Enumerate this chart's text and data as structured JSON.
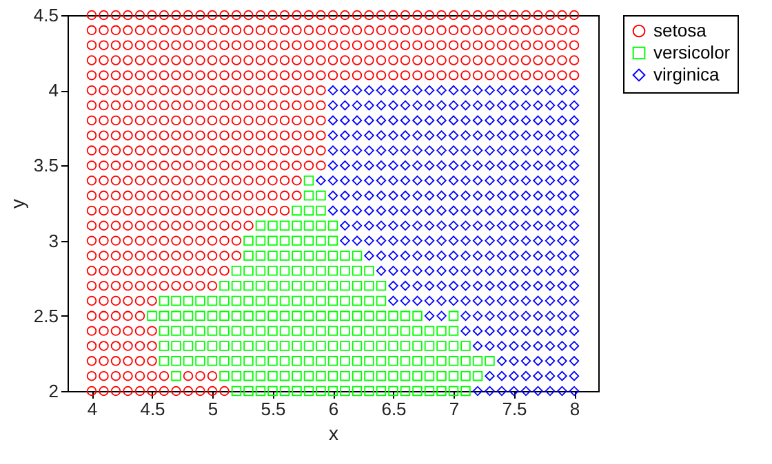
{
  "chart_data": {
    "type": "scatter",
    "xlabel": "x",
    "ylabel": "y",
    "xlim": [
      3.8,
      8.2
    ],
    "ylim": [
      2,
      4.5
    ],
    "xticks": [
      4,
      4.5,
      5,
      5.5,
      6,
      6.5,
      7,
      7.5,
      8
    ],
    "yticks": [
      2,
      2.5,
      3,
      3.5,
      4,
      4.5
    ],
    "grid": false,
    "legend": "right",
    "series": [
      {
        "name": "setosa",
        "color": "#ff0000",
        "marker": "circle",
        "x": [
          4,
          4.1,
          4.2,
          4.3,
          4.4,
          4.5,
          4.6,
          4.7,
          4.8,
          4.9,
          5,
          5.1,
          5.2,
          5.3,
          5.4,
          5.5,
          5.6,
          5.7,
          5.8,
          5.9,
          6,
          6.1,
          6.2,
          6.3,
          6.4,
          6.5,
          6.6,
          6.7,
          6.8,
          6.9,
          7,
          7.1,
          7.2,
          7.3,
          7.4,
          7.5,
          7.6,
          7.7,
          7.8,
          7.9,
          8,
          4,
          4.1,
          4.2,
          4.3,
          4.4,
          4.5,
          4.6,
          4.7,
          4.8,
          4.9,
          5,
          5.1,
          5.2,
          5.3,
          5.4,
          5.5,
          5.6,
          5.7,
          5.8,
          5.9,
          6,
          6.1,
          6.2,
          6.3,
          6.4,
          6.5,
          6.6,
          6.7,
          6.8,
          6.9,
          7,
          7.1,
          7.2,
          7.3,
          7.4,
          7.5,
          7.6,
          7.7,
          7.8,
          7.9,
          8,
          4,
          4.1,
          4.2,
          4.3,
          4.4,
          4.5,
          4.6,
          4.7,
          4.8,
          4.9,
          5,
          5.1,
          5.2,
          5.3,
          5.4,
          5.5,
          5.6,
          5.7,
          5.8,
          5.9,
          6,
          6.1,
          6.2,
          6.3,
          6.4,
          6.5,
          6.6,
          6.7,
          6.8,
          6.9,
          7,
          7.1,
          7.2,
          7.3,
          7.4,
          7.5,
          7.6,
          7.7,
          7.8,
          7.9,
          8,
          4,
          4.1,
          4.2,
          4.3,
          4.4,
          4.5,
          4.6,
          4.7,
          4.8,
          4.9,
          5,
          5.1,
          5.2,
          5.3,
          5.4,
          5.5,
          5.6,
          5.7,
          5.8,
          5.9,
          6,
          6.1,
          6.2,
          6.3,
          6.4,
          6.5,
          6.6,
          6.7,
          6.8,
          6.9,
          7,
          7.1,
          7.2,
          7.3,
          7.4,
          7.5,
          7.6,
          7.7,
          7.8,
          7.9,
          8,
          4,
          4.1,
          4.2,
          4.3,
          4.4,
          4.5,
          4.6,
          4.7,
          4.8,
          4.9,
          5,
          5.1,
          5.2,
          5.3,
          5.4,
          5.5,
          5.6,
          5.7,
          5.8,
          5.9,
          6,
          6.1,
          6.2,
          6.3,
          6.4,
          6.5,
          6.6,
          6.7,
          6.8,
          6.9,
          7,
          7.1,
          7.2,
          7.3,
          7.4,
          7.5,
          7.6,
          7.7,
          7.8,
          7.9,
          8,
          4,
          4.1,
          4.2,
          4.3,
          4.4,
          4.5,
          4.6,
          4.7,
          4.8,
          4.9,
          5,
          5.1,
          5.2,
          5.3,
          5.4,
          5.5,
          5.6,
          5.7,
          5.8,
          5.9,
          4,
          4.1,
          4.2,
          4.3,
          4.4,
          4.5,
          4.6,
          4.7,
          4.8,
          4.9,
          5,
          5.1,
          5.2,
          5.3,
          5.4,
          5.5,
          5.6,
          5.7,
          5.8,
          5.9,
          4,
          4.1,
          4.2,
          4.3,
          4.4,
          4.5,
          4.6,
          4.7,
          4.8,
          4.9,
          5,
          5.1,
          5.2,
          5.3,
          5.4,
          5.5,
          5.6,
          5.7,
          5.8,
          5.9,
          4,
          4.1,
          4.2,
          4.3,
          4.4,
          4.5,
          4.6,
          4.7,
          4.8,
          4.9,
          5,
          5.1,
          5.2,
          5.3,
          5.4,
          5.5,
          5.6,
          5.7,
          5.8,
          5.9,
          4,
          4.1,
          4.2,
          4.3,
          4.4,
          4.5,
          4.6,
          4.7,
          4.8,
          4.9,
          5,
          5.1,
          5.2,
          5.3,
          5.4,
          5.5,
          5.6,
          5.7,
          5.8,
          5.9,
          4,
          4.1,
          4.2,
          4.3,
          4.4,
          4.5,
          4.6,
          4.7,
          4.8,
          4.9,
          5,
          5.1,
          5.2,
          5.3,
          5.4,
          5.5,
          5.6,
          5.7,
          5.8,
          5.9,
          4,
          4.1,
          4.2,
          4.3,
          4.4,
          4.5,
          4.6,
          4.7,
          4.8,
          4.9,
          5,
          5.1,
          5.2,
          5.3,
          5.4,
          5.5,
          5.6,
          5.7,
          4,
          4.1,
          4.2,
          4.3,
          4.4,
          4.5,
          4.6,
          4.7,
          4.8,
          4.9,
          5,
          5.1,
          5.2,
          5.3,
          5.4,
          5.5,
          5.6,
          5.7,
          4,
          4.1,
          4.2,
          4.3,
          4.4,
          4.5,
          4.6,
          4.7,
          4.8,
          4.9,
          5,
          5.1,
          5.2,
          5.3,
          5.4,
          5.5,
          5.6,
          4,
          4.1,
          4.2,
          4.3,
          4.4,
          4.5,
          4.6,
          4.7,
          4.8,
          4.9,
          5,
          5.1,
          5.2,
          5.3,
          4,
          4.1,
          4.2,
          4.3,
          4.4,
          4.5,
          4.6,
          4.7,
          4.8,
          4.9,
          5,
          5.1,
          5.2,
          4,
          4.1,
          4.2,
          4.3,
          4.4,
          4.5,
          4.6,
          4.7,
          4.8,
          4.9,
          5,
          5.1,
          5.2,
          4,
          4.1,
          4.2,
          4.3,
          4.4,
          4.5,
          4.6,
          4.7,
          4.8,
          4.9,
          5,
          5.1,
          4,
          4.1,
          4.2,
          4.3,
          4.4,
          4.5,
          4.6,
          4.7,
          4.8,
          4.9,
          5,
          4,
          4.1,
          4.2,
          4.3,
          4.4,
          4.5,
          4,
          4.1,
          4.2,
          4.3,
          4.4,
          4,
          4.1,
          4.2,
          4.3,
          4.4,
          4.5,
          4,
          4.1,
          4.2,
          4.3,
          4.4,
          4.5,
          4,
          4.1,
          4.2,
          4.3,
          4.4,
          4.5,
          4,
          4.1,
          4.2,
          4.3,
          4.4,
          4.5,
          4.6,
          4.8,
          4.9,
          5,
          4,
          4.1,
          4.2,
          4.3,
          4.4,
          4.5,
          4.6,
          4.7,
          4.8,
          4.9,
          5,
          5.1
        ],
        "values": [
          4.5,
          4.5,
          4.5,
          4.5,
          4.5,
          4.5,
          4.5,
          4.5,
          4.5,
          4.5,
          4.5,
          4.5,
          4.5,
          4.5,
          4.5,
          4.5,
          4.5,
          4.5,
          4.5,
          4.5,
          4.5,
          4.5,
          4.5,
          4.5,
          4.5,
          4.5,
          4.5,
          4.5,
          4.5,
          4.5,
          4.5,
          4.5,
          4.5,
          4.5,
          4.5,
          4.5,
          4.5,
          4.5,
          4.5,
          4.5,
          4.5,
          4.4,
          4.4,
          4.4,
          4.4,
          4.4,
          4.4,
          4.4,
          4.4,
          4.4,
          4.4,
          4.4,
          4.4,
          4.4,
          4.4,
          4.4,
          4.4,
          4.4,
          4.4,
          4.4,
          4.4,
          4.4,
          4.4,
          4.4,
          4.4,
          4.4,
          4.4,
          4.4,
          4.4,
          4.4,
          4.4,
          4.4,
          4.4,
          4.4,
          4.4,
          4.4,
          4.4,
          4.4,
          4.4,
          4.4,
          4.4,
          4.4,
          4.3,
          4.3,
          4.3,
          4.3,
          4.3,
          4.3,
          4.3,
          4.3,
          4.3,
          4.3,
          4.3,
          4.3,
          4.3,
          4.3,
          4.3,
          4.3,
          4.3,
          4.3,
          4.3,
          4.3,
          4.3,
          4.3,
          4.3,
          4.3,
          4.3,
          4.3,
          4.3,
          4.3,
          4.3,
          4.3,
          4.3,
          4.3,
          4.3,
          4.3,
          4.3,
          4.3,
          4.3,
          4.3,
          4.3,
          4.3,
          4.3,
          4.2,
          4.2,
          4.2,
          4.2,
          4.2,
          4.2,
          4.2,
          4.2,
          4.2,
          4.2,
          4.2,
          4.2,
          4.2,
          4.2,
          4.2,
          4.2,
          4.2,
          4.2,
          4.2,
          4.2,
          4.2,
          4.2,
          4.2,
          4.2,
          4.2,
          4.2,
          4.2,
          4.2,
          4.2,
          4.2,
          4.2,
          4.2,
          4.2,
          4.2,
          4.2,
          4.2,
          4.2,
          4.2,
          4.2,
          4.2,
          4.2,
          4.1,
          4.1,
          4.1,
          4.1,
          4.1,
          4.1,
          4.1,
          4.1,
          4.1,
          4.1,
          4.1,
          4.1,
          4.1,
          4.1,
          4.1,
          4.1,
          4.1,
          4.1,
          4.1,
          4.1,
          4.1,
          4.1,
          4.1,
          4.1,
          4.1,
          4.1,
          4.1,
          4.1,
          4.1,
          4.1,
          4.1,
          4.1,
          4.1,
          4.1,
          4.1,
          4.1,
          4.1,
          4.1,
          4.1,
          4.1,
          4.1,
          4,
          4,
          4,
          4,
          4,
          4,
          4,
          4,
          4,
          4,
          4,
          4,
          4,
          4,
          4,
          4,
          4,
          4,
          4,
          4,
          3.9,
          3.9,
          3.9,
          3.9,
          3.9,
          3.9,
          3.9,
          3.9,
          3.9,
          3.9,
          3.9,
          3.9,
          3.9,
          3.9,
          3.9,
          3.9,
          3.9,
          3.9,
          3.9,
          3.9,
          3.8,
          3.8,
          3.8,
          3.8,
          3.8,
          3.8,
          3.8,
          3.8,
          3.8,
          3.8,
          3.8,
          3.8,
          3.8,
          3.8,
          3.8,
          3.8,
          3.8,
          3.8,
          3.8,
          3.8,
          3.7,
          3.7,
          3.7,
          3.7,
          3.7,
          3.7,
          3.7,
          3.7,
          3.7,
          3.7,
          3.7,
          3.7,
          3.7,
          3.7,
          3.7,
          3.7,
          3.7,
          3.7,
          3.7,
          3.7,
          3.6,
          3.6,
          3.6,
          3.6,
          3.6,
          3.6,
          3.6,
          3.6,
          3.6,
          3.6,
          3.6,
          3.6,
          3.6,
          3.6,
          3.6,
          3.6,
          3.6,
          3.6,
          3.6,
          3.6,
          3.5,
          3.5,
          3.5,
          3.5,
          3.5,
          3.5,
          3.5,
          3.5,
          3.5,
          3.5,
          3.5,
          3.5,
          3.5,
          3.5,
          3.5,
          3.5,
          3.5,
          3.5,
          3.5,
          3.5,
          3.4,
          3.4,
          3.4,
          3.4,
          3.4,
          3.4,
          3.4,
          3.4,
          3.4,
          3.4,
          3.4,
          3.4,
          3.4,
          3.4,
          3.4,
          3.4,
          3.4,
          3.4,
          3.3,
          3.3,
          3.3,
          3.3,
          3.3,
          3.3,
          3.3,
          3.3,
          3.3,
          3.3,
          3.3,
          3.3,
          3.3,
          3.3,
          3.3,
          3.3,
          3.3,
          3.3,
          3.2,
          3.2,
          3.2,
          3.2,
          3.2,
          3.2,
          3.2,
          3.2,
          3.2,
          3.2,
          3.2,
          3.2,
          3.2,
          3.2,
          3.2,
          3.2,
          3.2,
          3.1,
          3.1,
          3.1,
          3.1,
          3.1,
          3.1,
          3.1,
          3.1,
          3.1,
          3.1,
          3.1,
          3.1,
          3.1,
          3.1,
          3,
          3,
          3,
          3,
          3,
          3,
          3,
          3,
          3,
          3,
          3,
          3,
          3,
          2.9,
          2.9,
          2.9,
          2.9,
          2.9,
          2.9,
          2.9,
          2.9,
          2.9,
          2.9,
          2.9,
          2.9,
          2.9,
          2.8,
          2.8,
          2.8,
          2.8,
          2.8,
          2.8,
          2.8,
          2.8,
          2.8,
          2.8,
          2.8,
          2.8,
          2.7,
          2.7,
          2.7,
          2.7,
          2.7,
          2.7,
          2.7,
          2.7,
          2.7,
          2.7,
          2.7,
          2.6,
          2.6,
          2.6,
          2.6,
          2.6,
          2.6,
          2.5,
          2.5,
          2.5,
          2.5,
          2.5,
          2.4,
          2.4,
          2.4,
          2.4,
          2.4,
          2.4,
          2.3,
          2.3,
          2.3,
          2.3,
          2.3,
          2.3,
          2.2,
          2.2,
          2.2,
          2.2,
          2.2,
          2.2,
          2.1,
          2.1,
          2.1,
          2.1,
          2.1,
          2.1,
          2.1,
          2.1,
          2.1,
          2.1,
          2,
          2,
          2,
          2,
          2,
          2,
          2,
          2,
          2,
          2,
          2,
          2
        ]
      },
      {
        "name": "versicolor",
        "color": "#00ff00",
        "marker": "square",
        "x": [
          5.8,
          5.8,
          5.9,
          5.7,
          5.8,
          5.9,
          5.4,
          5.5,
          5.6,
          5.7,
          5.8,
          5.9,
          6,
          5.3,
          5.4,
          5.5,
          5.6,
          5.7,
          5.8,
          5.9,
          6,
          5.3,
          5.4,
          5.5,
          5.6,
          5.7,
          5.8,
          5.9,
          6,
          6.1,
          6.2,
          5.2,
          5.3,
          5.4,
          5.5,
          5.6,
          5.7,
          5.8,
          5.9,
          6,
          6.1,
          6.2,
          6.3,
          5.1,
          5.2,
          5.3,
          5.4,
          5.5,
          5.6,
          5.7,
          5.8,
          5.9,
          6,
          6.1,
          6.2,
          6.3,
          6.4,
          4.6,
          4.7,
          4.8,
          4.9,
          5,
          5.1,
          5.2,
          5.3,
          5.4,
          5.5,
          5.6,
          5.7,
          5.8,
          5.9,
          6,
          6.1,
          6.2,
          6.3,
          6.4,
          4.5,
          4.6,
          4.7,
          4.8,
          4.9,
          5,
          5.1,
          5.2,
          5.3,
          5.4,
          5.5,
          5.6,
          5.7,
          5.8,
          5.9,
          6,
          6.1,
          6.2,
          6.3,
          6.4,
          6.5,
          6.6,
          6.7,
          7,
          4.6,
          4.7,
          4.8,
          4.9,
          5,
          5.1,
          5.2,
          5.3,
          5.4,
          5.5,
          5.6,
          5.7,
          5.8,
          5.9,
          6,
          6.1,
          6.2,
          6.3,
          6.4,
          6.5,
          6.6,
          6.7,
          6.8,
          6.9,
          7,
          4.6,
          4.7,
          4.8,
          4.9,
          5,
          5.1,
          5.2,
          5.3,
          5.4,
          5.5,
          5.6,
          5.7,
          5.8,
          5.9,
          6,
          6.1,
          6.2,
          6.3,
          6.4,
          6.5,
          6.6,
          6.7,
          6.8,
          6.9,
          7,
          7.1,
          4.6,
          4.7,
          4.8,
          4.9,
          5,
          5.1,
          5.2,
          5.3,
          5.4,
          5.5,
          5.6,
          5.7,
          5.8,
          5.9,
          6,
          6.1,
          6.2,
          6.3,
          6.4,
          6.5,
          6.6,
          6.7,
          6.8,
          6.9,
          7,
          7.1,
          7.2,
          7.3,
          4.7,
          5.1,
          5.2,
          5.3,
          5.4,
          5.5,
          5.6,
          5.7,
          5.8,
          5.9,
          6,
          6.1,
          6.2,
          6.3,
          6.4,
          6.5,
          6.6,
          6.7,
          6.8,
          6.9,
          7,
          7.1,
          7.2,
          5.2,
          5.3,
          5.4,
          5.5,
          5.6,
          5.7,
          5.8,
          5.9,
          6,
          6.1,
          6.2,
          6.3,
          6.4,
          6.5,
          6.6,
          6.7,
          6.8,
          6.9,
          7,
          7.1
        ],
        "values": [
          3.4,
          3.3,
          3.3,
          3.2,
          3.2,
          3.2,
          3.1,
          3.1,
          3.1,
          3.1,
          3.1,
          3.1,
          3.1,
          3,
          3,
          3,
          3,
          3,
          3,
          3,
          3,
          2.9,
          2.9,
          2.9,
          2.9,
          2.9,
          2.9,
          2.9,
          2.9,
          2.9,
          2.9,
          2.8,
          2.8,
          2.8,
          2.8,
          2.8,
          2.8,
          2.8,
          2.8,
          2.8,
          2.8,
          2.8,
          2.8,
          2.7,
          2.7,
          2.7,
          2.7,
          2.7,
          2.7,
          2.7,
          2.7,
          2.7,
          2.7,
          2.7,
          2.7,
          2.7,
          2.7,
          2.6,
          2.6,
          2.6,
          2.6,
          2.6,
          2.6,
          2.6,
          2.6,
          2.6,
          2.6,
          2.6,
          2.6,
          2.6,
          2.6,
          2.6,
          2.6,
          2.6,
          2.6,
          2.6,
          2.5,
          2.5,
          2.5,
          2.5,
          2.5,
          2.5,
          2.5,
          2.5,
          2.5,
          2.5,
          2.5,
          2.5,
          2.5,
          2.5,
          2.5,
          2.5,
          2.5,
          2.5,
          2.5,
          2.5,
          2.5,
          2.5,
          2.5,
          2.5,
          2.4,
          2.4,
          2.4,
          2.4,
          2.4,
          2.4,
          2.4,
          2.4,
          2.4,
          2.4,
          2.4,
          2.4,
          2.4,
          2.4,
          2.4,
          2.4,
          2.4,
          2.4,
          2.4,
          2.4,
          2.4,
          2.4,
          2.4,
          2.4,
          2.4,
          2.3,
          2.3,
          2.3,
          2.3,
          2.3,
          2.3,
          2.3,
          2.3,
          2.3,
          2.3,
          2.3,
          2.3,
          2.3,
          2.3,
          2.3,
          2.3,
          2.3,
          2.3,
          2.3,
          2.3,
          2.3,
          2.3,
          2.3,
          2.3,
          2.3,
          2.3,
          2.2,
          2.2,
          2.2,
          2.2,
          2.2,
          2.2,
          2.2,
          2.2,
          2.2,
          2.2,
          2.2,
          2.2,
          2.2,
          2.2,
          2.2,
          2.2,
          2.2,
          2.2,
          2.2,
          2.2,
          2.2,
          2.2,
          2.2,
          2.2,
          2.2,
          2.2,
          2.2,
          2.2,
          2.1,
          2.1,
          2.1,
          2.1,
          2.1,
          2.1,
          2.1,
          2.1,
          2.1,
          2.1,
          2.1,
          2.1,
          2.1,
          2.1,
          2.1,
          2.1,
          2.1,
          2.1,
          2.1,
          2.1,
          2.1,
          2.1,
          2.1,
          2,
          2,
          2,
          2,
          2,
          2,
          2,
          2,
          2,
          2,
          2,
          2,
          2,
          2,
          2,
          2,
          2,
          2,
          2,
          2
        ]
      },
      {
        "name": "virginica",
        "color": "#0000ff",
        "marker": "diamond",
        "x": [
          6,
          6.1,
          6.2,
          6.3,
          6.4,
          6.5,
          6.6,
          6.7,
          6.8,
          6.9,
          7,
          7.1,
          7.2,
          7.3,
          7.4,
          7.5,
          7.6,
          7.7,
          7.8,
          7.9,
          8,
          6,
          6.1,
          6.2,
          6.3,
          6.4,
          6.5,
          6.6,
          6.7,
          6.8,
          6.9,
          7,
          7.1,
          7.2,
          7.3,
          7.4,
          7.5,
          7.6,
          7.7,
          7.8,
          7.9,
          8,
          6,
          6.1,
          6.2,
          6.3,
          6.4,
          6.5,
          6.6,
          6.7,
          6.8,
          6.9,
          7,
          7.1,
          7.2,
          7.3,
          7.4,
          7.5,
          7.6,
          7.7,
          7.8,
          7.9,
          8,
          6,
          6.1,
          6.2,
          6.3,
          6.4,
          6.5,
          6.6,
          6.7,
          6.8,
          6.9,
          7,
          7.1,
          7.2,
          7.3,
          7.4,
          7.5,
          7.6,
          7.7,
          7.8,
          7.9,
          8,
          6,
          6.1,
          6.2,
          6.3,
          6.4,
          6.5,
          6.6,
          6.7,
          6.8,
          6.9,
          7,
          7.1,
          7.2,
          7.3,
          7.4,
          7.5,
          7.6,
          7.7,
          7.8,
          7.9,
          8,
          6,
          6.1,
          6.2,
          6.3,
          6.4,
          6.5,
          6.6,
          6.7,
          6.8,
          6.9,
          7,
          7.1,
          7.2,
          7.3,
          7.4,
          7.5,
          7.6,
          7.7,
          7.8,
          7.9,
          8,
          5.9,
          6,
          6.1,
          6.2,
          6.3,
          6.4,
          6.5,
          6.6,
          6.7,
          6.8,
          6.9,
          7,
          7.1,
          7.2,
          7.3,
          7.4,
          7.5,
          7.6,
          7.7,
          7.8,
          7.9,
          8,
          6,
          6.1,
          6.2,
          6.3,
          6.4,
          6.5,
          6.6,
          6.7,
          6.8,
          6.9,
          7,
          7.1,
          7.2,
          7.3,
          7.4,
          7.5,
          7.6,
          7.7,
          7.8,
          7.9,
          8,
          6,
          6.1,
          6.2,
          6.3,
          6.4,
          6.5,
          6.6,
          6.7,
          6.8,
          6.9,
          7,
          7.1,
          7.2,
          7.3,
          7.4,
          7.5,
          7.6,
          7.7,
          7.8,
          7.9,
          8,
          6.1,
          6.2,
          6.3,
          6.4,
          6.5,
          6.6,
          6.7,
          6.8,
          6.9,
          7,
          7.1,
          7.2,
          7.3,
          7.4,
          7.5,
          7.6,
          7.7,
          7.8,
          7.9,
          8,
          6.1,
          6.2,
          6.3,
          6.4,
          6.5,
          6.6,
          6.7,
          6.8,
          6.9,
          7,
          7.1,
          7.2,
          7.3,
          7.4,
          7.5,
          7.6,
          7.7,
          7.8,
          7.9,
          8,
          6.3,
          6.4,
          6.5,
          6.6,
          6.7,
          6.8,
          6.9,
          7,
          7.1,
          7.2,
          7.3,
          7.4,
          7.5,
          7.6,
          7.7,
          7.8,
          7.9,
          8,
          6.4,
          6.5,
          6.6,
          6.7,
          6.8,
          6.9,
          7,
          7.1,
          7.2,
          7.3,
          7.4,
          7.5,
          7.6,
          7.7,
          7.8,
          7.9,
          8,
          6.5,
          6.6,
          6.7,
          6.8,
          6.9,
          7,
          7.1,
          7.2,
          7.3,
          7.4,
          7.5,
          7.6,
          7.7,
          7.8,
          7.9,
          8,
          6.5,
          6.6,
          6.7,
          6.8,
          6.9,
          7,
          7.1,
          7.2,
          7.3,
          7.4,
          7.5,
          7.6,
          7.7,
          7.8,
          7.9,
          8,
          6.8,
          6.9,
          7.1,
          7.2,
          7.3,
          7.4,
          7.5,
          7.6,
          7.7,
          7.8,
          7.9,
          8,
          7.1,
          7.2,
          7.3,
          7.4,
          7.5,
          7.6,
          7.7,
          7.8,
          7.9,
          8,
          7.2,
          7.3,
          7.4,
          7.5,
          7.6,
          7.7,
          7.8,
          7.9,
          8,
          7.4,
          7.5,
          7.6,
          7.7,
          7.8,
          7.9,
          8,
          7.3,
          7.4,
          7.5,
          7.6,
          7.7,
          7.8,
          7.9,
          8,
          7.2,
          7.3,
          7.4,
          7.5,
          7.6,
          7.7,
          7.8,
          7.9,
          8
        ],
        "values": [
          4,
          4,
          4,
          4,
          4,
          4,
          4,
          4,
          4,
          4,
          4,
          4,
          4,
          4,
          4,
          4,
          4,
          4,
          4,
          4,
          4,
          3.9,
          3.9,
          3.9,
          3.9,
          3.9,
          3.9,
          3.9,
          3.9,
          3.9,
          3.9,
          3.9,
          3.9,
          3.9,
          3.9,
          3.9,
          3.9,
          3.9,
          3.9,
          3.9,
          3.9,
          3.9,
          3.8,
          3.8,
          3.8,
          3.8,
          3.8,
          3.8,
          3.8,
          3.8,
          3.8,
          3.8,
          3.8,
          3.8,
          3.8,
          3.8,
          3.8,
          3.8,
          3.8,
          3.8,
          3.8,
          3.8,
          3.8,
          3.7,
          3.7,
          3.7,
          3.7,
          3.7,
          3.7,
          3.7,
          3.7,
          3.7,
          3.7,
          3.7,
          3.7,
          3.7,
          3.7,
          3.7,
          3.7,
          3.7,
          3.7,
          3.7,
          3.7,
          3.7,
          3.6,
          3.6,
          3.6,
          3.6,
          3.6,
          3.6,
          3.6,
          3.6,
          3.6,
          3.6,
          3.6,
          3.6,
          3.6,
          3.6,
          3.6,
          3.6,
          3.6,
          3.6,
          3.6,
          3.6,
          3.6,
          3.5,
          3.5,
          3.5,
          3.5,
          3.5,
          3.5,
          3.5,
          3.5,
          3.5,
          3.5,
          3.5,
          3.5,
          3.5,
          3.5,
          3.5,
          3.5,
          3.5,
          3.5,
          3.5,
          3.5,
          3.5,
          3.4,
          3.4,
          3.4,
          3.4,
          3.4,
          3.4,
          3.4,
          3.4,
          3.4,
          3.4,
          3.4,
          3.4,
          3.4,
          3.4,
          3.4,
          3.4,
          3.4,
          3.4,
          3.4,
          3.4,
          3.4,
          3.4,
          3.3,
          3.3,
          3.3,
          3.3,
          3.3,
          3.3,
          3.3,
          3.3,
          3.3,
          3.3,
          3.3,
          3.3,
          3.3,
          3.3,
          3.3,
          3.3,
          3.3,
          3.3,
          3.3,
          3.3,
          3.3,
          3.2,
          3.2,
          3.2,
          3.2,
          3.2,
          3.2,
          3.2,
          3.2,
          3.2,
          3.2,
          3.2,
          3.2,
          3.2,
          3.2,
          3.2,
          3.2,
          3.2,
          3.2,
          3.2,
          3.2,
          3.2,
          3.1,
          3.1,
          3.1,
          3.1,
          3.1,
          3.1,
          3.1,
          3.1,
          3.1,
          3.1,
          3.1,
          3.1,
          3.1,
          3.1,
          3.1,
          3.1,
          3.1,
          3.1,
          3.1,
          3.1,
          3,
          3,
          3,
          3,
          3,
          3,
          3,
          3,
          3,
          3,
          3,
          3,
          3,
          3,
          3,
          3,
          3,
          3,
          3,
          3,
          2.9,
          2.9,
          2.9,
          2.9,
          2.9,
          2.9,
          2.9,
          2.9,
          2.9,
          2.9,
          2.9,
          2.9,
          2.9,
          2.9,
          2.9,
          2.9,
          2.9,
          2.9,
          2.8,
          2.8,
          2.8,
          2.8,
          2.8,
          2.8,
          2.8,
          2.8,
          2.8,
          2.8,
          2.8,
          2.8,
          2.8,
          2.8,
          2.8,
          2.8,
          2.8,
          2.7,
          2.7,
          2.7,
          2.7,
          2.7,
          2.7,
          2.7,
          2.7,
          2.7,
          2.7,
          2.7,
          2.7,
          2.7,
          2.7,
          2.7,
          2.7,
          2.6,
          2.6,
          2.6,
          2.6,
          2.6,
          2.6,
          2.6,
          2.6,
          2.6,
          2.6,
          2.6,
          2.6,
          2.6,
          2.6,
          2.6,
          2.6,
          2.5,
          2.5,
          2.5,
          2.5,
          2.5,
          2.5,
          2.5,
          2.5,
          2.5,
          2.5,
          2.5,
          2.5,
          2.4,
          2.4,
          2.4,
          2.4,
          2.4,
          2.4,
          2.4,
          2.4,
          2.4,
          2.4,
          2.3,
          2.3,
          2.3,
          2.3,
          2.3,
          2.3,
          2.3,
          2.3,
          2.3,
          2.2,
          2.2,
          2.2,
          2.2,
          2.2,
          2.2,
          2.2,
          2.1,
          2.1,
          2.1,
          2.1,
          2.1,
          2.1,
          2.1,
          2.1,
          2,
          2,
          2,
          2,
          2,
          2,
          2,
          2,
          2
        ]
      }
    ]
  }
}
